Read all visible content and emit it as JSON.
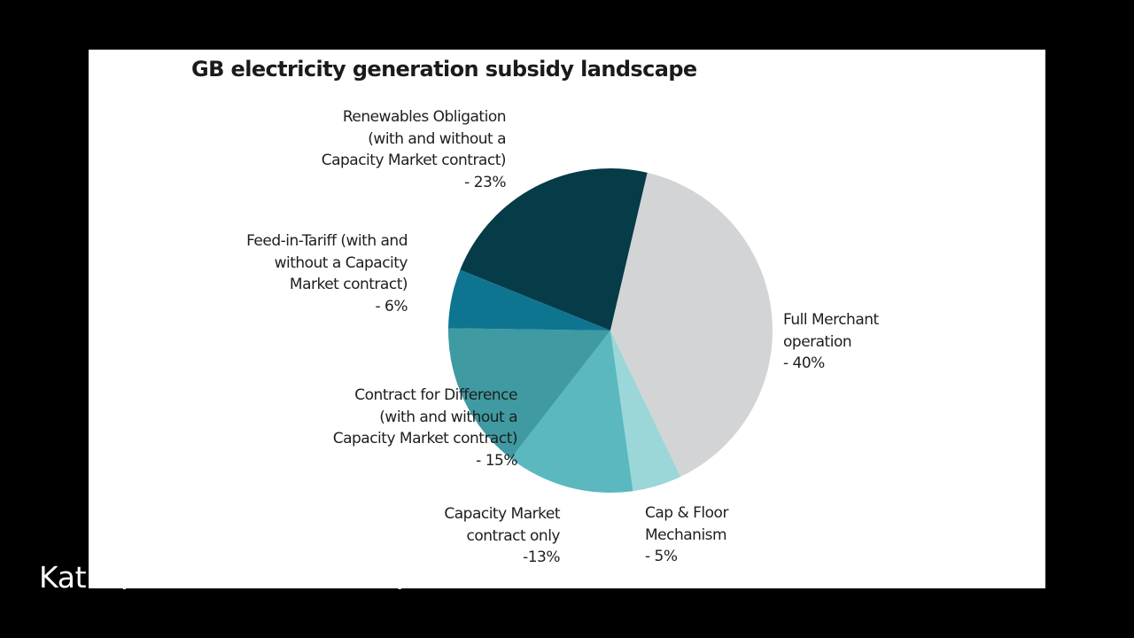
{
  "chart_data": {
    "type": "pie",
    "title": "GB electricity generation subsidy landscape",
    "slices": [
      {
        "label_lines": [
          "Renewables Obligation",
          "(with and without a",
          "Capacity Market contract)",
          "- 23%"
        ],
        "value": 23,
        "color": "#063b48"
      },
      {
        "label_lines": [
          "Full Merchant",
          "operation",
          "- 40%"
        ],
        "value": 40,
        "color": "#d3d4d5"
      },
      {
        "label_lines": [
          "Cap & Floor",
          "Mechanism",
          "- 5%"
        ],
        "value": 5,
        "color": "#9bd6d8"
      },
      {
        "label_lines": [
          "Capacity Market",
          "contract only",
          "-13%"
        ],
        "value": 13,
        "color": "#5ab8be"
      },
      {
        "label_lines": [
          "Contract for Difference",
          "(with and without a",
          "Capacity Market contract)",
          "- 15%"
        ],
        "value": 15,
        "color": "#3f9aa2"
      },
      {
        "label_lines": [
          "Feed-in-Tariff (with and",
          "without a Capacity",
          "Market contract)",
          "- 6%"
        ],
        "value": 6,
        "color": "#0e7590"
      }
    ]
  },
  "caption": "Kathryn Porter - Watt-Logic"
}
